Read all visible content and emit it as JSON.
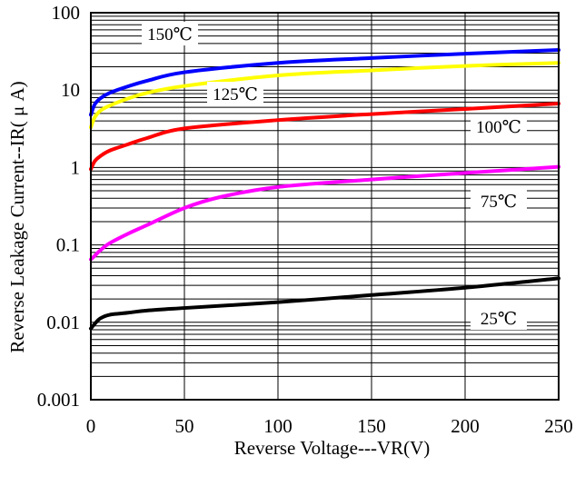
{
  "chart_data": {
    "type": "line",
    "xlabel": "Reverse Voltage---VR(V)",
    "ylabel": "Reverse Leakage Current--IR( μ A)",
    "xlim": [
      0,
      250
    ],
    "ylim": [
      0.001,
      100
    ],
    "yscale": "log",
    "grid": true,
    "x_ticks": [
      "0",
      "50",
      "100",
      "150",
      "200",
      "250"
    ],
    "y_ticks": [
      "0.001",
      "0.01",
      "0.1",
      "1",
      "10",
      "100"
    ],
    "series": [
      {
        "name": "150℃",
        "color": "#0000ff",
        "x": [
          0,
          2,
          5,
          10,
          20,
          30,
          50,
          100,
          150,
          200,
          250
        ],
        "y": [
          4.8,
          6.5,
          7.8,
          9.2,
          11.2,
          13.2,
          17,
          22.5,
          26,
          29.5,
          33
        ]
      },
      {
        "name": "125℃",
        "color": "#ffff00",
        "x": [
          0,
          2,
          5,
          10,
          20,
          30,
          50,
          100,
          150,
          200,
          250
        ],
        "y": [
          3.3,
          4.4,
          5.4,
          6.3,
          7.8,
          9.2,
          11.3,
          15.5,
          18,
          20.5,
          22.5
        ]
      },
      {
        "name": "100℃",
        "color": "#ff0000",
        "x": [
          0,
          2,
          5,
          10,
          20,
          30,
          50,
          100,
          150,
          200,
          250
        ],
        "y": [
          0.95,
          1.2,
          1.4,
          1.65,
          2.0,
          2.4,
          3.2,
          4.1,
          4.9,
          5.7,
          6.7
        ]
      },
      {
        "name": "75℃",
        "color": "#ff00ff",
        "x": [
          0,
          2,
          5,
          10,
          20,
          30,
          50,
          70,
          100,
          150,
          200,
          250
        ],
        "y": [
          0.065,
          0.072,
          0.085,
          0.105,
          0.14,
          0.18,
          0.3,
          0.42,
          0.56,
          0.7,
          0.85,
          1.02
        ]
      },
      {
        "name": "25℃",
        "color": "#000000",
        "x": [
          0,
          2,
          5,
          10,
          20,
          30,
          50,
          100,
          150,
          200,
          250
        ],
        "y": [
          0.0083,
          0.0095,
          0.0112,
          0.0125,
          0.0133,
          0.0142,
          0.0153,
          0.0182,
          0.0225,
          0.028,
          0.037
        ]
      }
    ]
  }
}
